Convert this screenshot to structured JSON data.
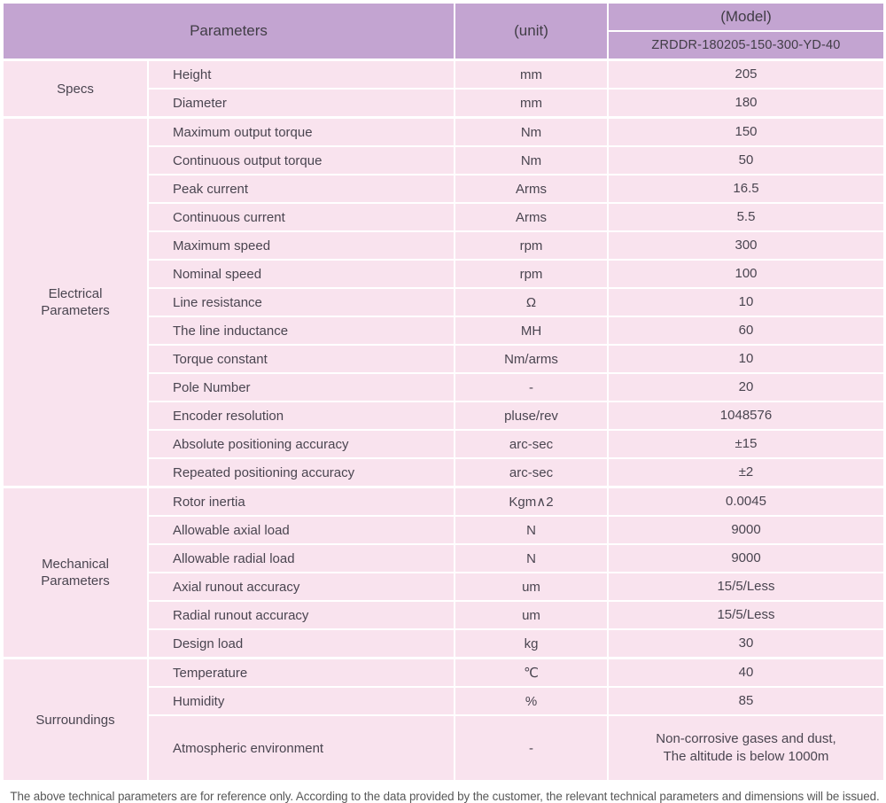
{
  "header": {
    "parameters_label": "Parameters",
    "unit_label": "(unit)",
    "model_label": "(Model)",
    "model_value": "ZRDDR-180205-150-300-YD-40"
  },
  "colors": {
    "header_bg": "#c3a4d1",
    "row_bg": "#f9e3ee",
    "border": "#ffffff",
    "text": "#4a4550",
    "footer_text": "#575757"
  },
  "sections": [
    {
      "category": "Specs",
      "rows": [
        {
          "name": "Height",
          "unit": "mm",
          "value": "205"
        },
        {
          "name": "Diameter",
          "unit": "mm",
          "value": "180"
        }
      ]
    },
    {
      "category": "Electrical Parameters",
      "rows": [
        {
          "name": "Maximum output torque",
          "unit": "Nm",
          "value": "150"
        },
        {
          "name": "Continuous output torque",
          "unit": "Nm",
          "value": "50"
        },
        {
          "name": "Peak current",
          "unit": "Arms",
          "value": "16.5"
        },
        {
          "name": "Continuous current",
          "unit": "Arms",
          "value": "5.5"
        },
        {
          "name": "Maximum speed",
          "unit": "rpm",
          "value": "300"
        },
        {
          "name": "Nominal speed",
          "unit": "rpm",
          "value": "100"
        },
        {
          "name": "Line resistance",
          "unit": "Ω",
          "value": "10"
        },
        {
          "name": "The line inductance",
          "unit": "MH",
          "value": "60"
        },
        {
          "name": "Torque constant",
          "unit": "Nm/arms",
          "value": "10"
        },
        {
          "name": "Pole Number",
          "unit": "-",
          "value": "20"
        },
        {
          "name": "Encoder resolution",
          "unit": "pluse/rev",
          "value": "1048576"
        },
        {
          "name": "Absolute positioning accuracy",
          "unit": "arc-sec",
          "value": "±15"
        },
        {
          "name": "Repeated positioning accuracy",
          "unit": "arc-sec",
          "value": "±2"
        }
      ]
    },
    {
      "category": "Mechanical Parameters",
      "rows": [
        {
          "name": "Rotor inertia",
          "unit": "Kgm∧2",
          "value": "0.0045"
        },
        {
          "name": "Allowable axial load",
          "unit": "N",
          "value": "9000"
        },
        {
          "name": "Allowable radial load",
          "unit": "N",
          "value": "9000"
        },
        {
          "name": "Axial runout accuracy",
          "unit": "um",
          "value": "15/5/Less"
        },
        {
          "name": "Radial runout accuracy",
          "unit": "um",
          "value": "15/5/Less"
        },
        {
          "name": "Design load",
          "unit": "kg",
          "value": "30"
        }
      ]
    },
    {
      "category": "Surroundings",
      "rows": [
        {
          "name": "Temperature",
          "unit": "℃",
          "value": "40"
        },
        {
          "name": "Humidity",
          "unit": "%",
          "value": "85"
        },
        {
          "name": "Atmospheric environment",
          "unit": "-",
          "value": "Non-corrosive gases and dust,\nThe altitude is below 1000m",
          "tall": true
        }
      ]
    }
  ],
  "footer": {
    "note": "The above technical parameters are for reference only. According to the data provided by the customer, the relevant technical parameters and dimensions will be issued."
  }
}
